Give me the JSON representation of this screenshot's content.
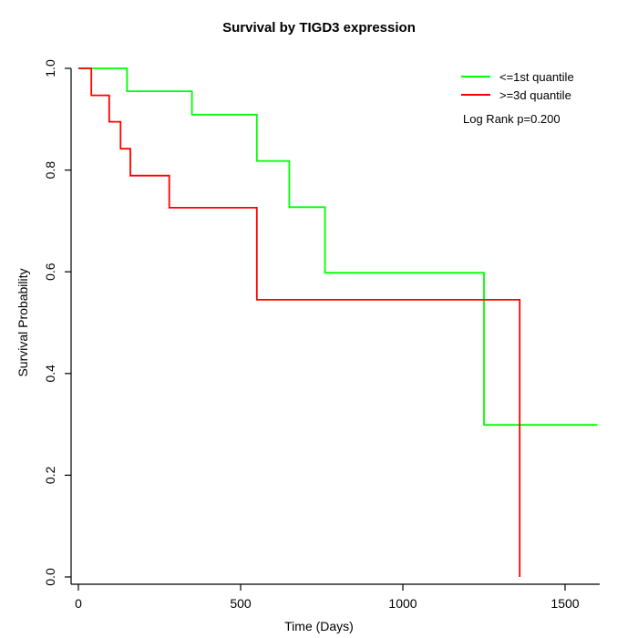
{
  "chart_data": {
    "type": "line",
    "subtype": "kaplan-meier-step",
    "title": "Survival by TIGD3 expression",
    "xlabel": "Time (Days)",
    "ylabel": "Survival Probability",
    "xlim": [
      0,
      1600
    ],
    "ylim": [
      0.0,
      1.0
    ],
    "x_ticks": [
      0,
      500,
      1000,
      1500
    ],
    "y_ticks": [
      0.0,
      0.2,
      0.4,
      0.6,
      0.8,
      1.0
    ],
    "grid": false,
    "legend_position": "top-right",
    "annotation": "Log Rank p=0.200",
    "series": [
      {
        "name": "<=1st quantile",
        "color": "#00ff00",
        "start": {
          "t": 0,
          "s": 1.0
        },
        "drop_times": [
          150,
          350,
          550,
          650,
          760,
          1250
        ],
        "surv_after_drop": [
          0.955,
          0.909,
          0.818,
          0.727,
          0.598,
          0.299
        ],
        "t_end": 1600
      },
      {
        "name": ">=3d quantile",
        "color": "#ff0000",
        "start": {
          "t": 0,
          "s": 1.0
        },
        "drop_times": [
          40,
          95,
          130,
          160,
          280,
          550,
          1360
        ],
        "surv_after_drop": [
          0.947,
          0.895,
          0.842,
          0.789,
          0.726,
          0.545,
          0.0
        ],
        "t_end": 1360
      }
    ]
  },
  "legend": {
    "items": [
      {
        "label": "<=1st quantile",
        "color": "#00ff00"
      },
      {
        "label": ">=3d quantile",
        "color": "#ff0000"
      }
    ],
    "note": "Log Rank p=0.200"
  }
}
